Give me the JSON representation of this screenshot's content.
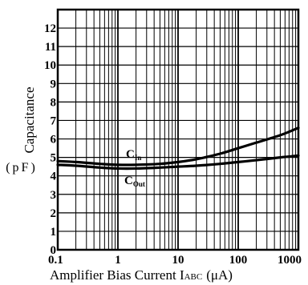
{
  "chart_data": {
    "type": "line",
    "xlabel": "Amplifier Bias Current I",
    "xlabel_sub": "ABC",
    "xlabel_unit": "(μA)",
    "ylabel": "Capacitance",
    "ylabel_unit": "(pF)",
    "x_scale": "log",
    "xlim": [
      0.1,
      1000
    ],
    "ylim": [
      0,
      13
    ],
    "x_ticks": [
      {
        "value": 0.1,
        "label": "0.1"
      },
      {
        "value": 1,
        "label": "1"
      },
      {
        "value": 10,
        "label": "10"
      },
      {
        "value": 100,
        "label": "100"
      },
      {
        "value": 1000,
        "label": "1000"
      }
    ],
    "y_ticks": [
      {
        "value": 0,
        "label": "0"
      },
      {
        "value": 1,
        "label": "1"
      },
      {
        "value": 2,
        "label": "2"
      },
      {
        "value": 3,
        "label": "3"
      },
      {
        "value": 4,
        "label": "4"
      },
      {
        "value": 5,
        "label": "5"
      },
      {
        "value": 6,
        "label": "6"
      },
      {
        "value": 7,
        "label": "7"
      },
      {
        "value": 8,
        "label": "8"
      },
      {
        "value": 9,
        "label": "9"
      },
      {
        "value": 10,
        "label": "10"
      },
      {
        "value": 11,
        "label": "11"
      },
      {
        "value": 12,
        "label": "12"
      }
    ],
    "grid": true,
    "series": [
      {
        "name": "C",
        "name_sub": "In",
        "x": [
          0.1,
          0.2,
          0.5,
          1,
          2,
          5,
          10,
          20,
          50,
          100,
          200,
          500,
          1000
        ],
        "y": [
          4.8,
          4.75,
          4.65,
          4.6,
          4.6,
          4.65,
          4.75,
          4.9,
          5.2,
          5.5,
          5.8,
          6.2,
          6.6
        ]
      },
      {
        "name": "C",
        "name_sub": "Out",
        "x": [
          0.1,
          0.2,
          0.5,
          1,
          2,
          5,
          10,
          20,
          50,
          100,
          200,
          500,
          1000
        ],
        "y": [
          4.6,
          4.55,
          4.45,
          4.4,
          4.4,
          4.45,
          4.5,
          4.55,
          4.65,
          4.75,
          4.85,
          5.0,
          5.1
        ]
      }
    ]
  },
  "colors": {
    "line": "#000000",
    "grid": "#000000",
    "background": "#ffffff"
  }
}
